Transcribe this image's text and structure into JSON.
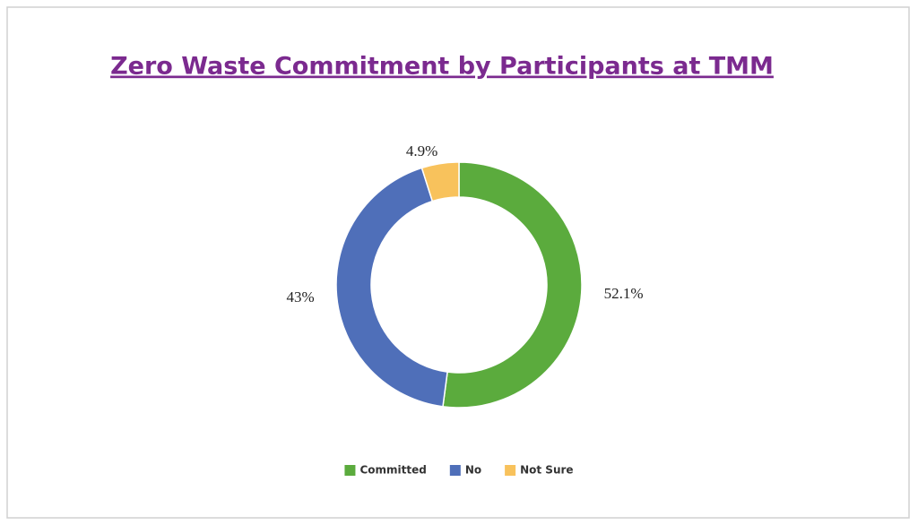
{
  "chart_data": {
    "type": "pie",
    "title": "Zero Waste Commitment by Participants at TMM",
    "categories": [
      "Committed",
      "No",
      "Not Sure"
    ],
    "values": [
      52.1,
      43,
      4.9
    ],
    "value_labels": [
      "52.1%",
      "43%",
      "4.9%"
    ],
    "colors": [
      "#5bab3d",
      "#4f6fb9",
      "#f8c25c"
    ],
    "legend": "bottom"
  }
}
